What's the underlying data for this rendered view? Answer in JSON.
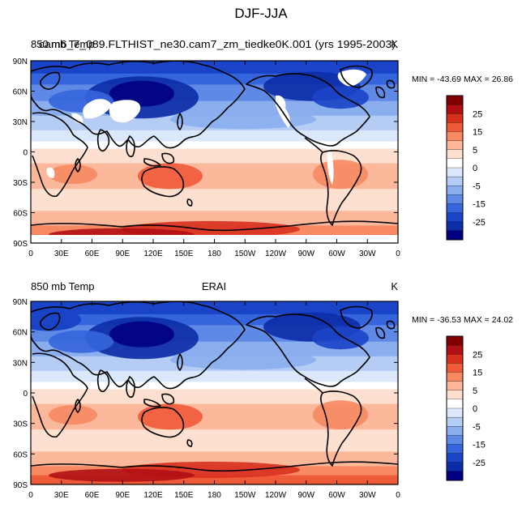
{
  "figure_title": "DJF-JJA",
  "colorbar": {
    "labels": [
      "25",
      "15",
      "5",
      "0",
      "-5",
      "-15",
      "-25"
    ],
    "colors": [
      "#800000",
      "#b00f14",
      "#d8301f",
      "#ef5a39",
      "#f78a63",
      "#fbb89b",
      "#fde0cf",
      "#ffffff",
      "#dbe8fb",
      "#b5cdf5",
      "#8aaeee",
      "#5e8ae6",
      "#3565dc",
      "#1a44c7",
      "#0c2ba6",
      "#000080"
    ]
  },
  "panels": [
    {
      "left_title": "850 mb Temp",
      "center_title": "",
      "model_title": "cam6_7_089.FLTHIST_ne30.cam7_zm_tiedke0K.001 (yrs 1995-2003)",
      "units": "K",
      "stats": {
        "min_label": "MIN = -43.69",
        "max_label": "MAX = 26.86",
        "min": -43.69,
        "max": 26.86
      },
      "masked_highlands": true
    },
    {
      "left_title": "850 mb Temp",
      "center_title": "ERAI",
      "model_title": "",
      "units": "K",
      "stats": {
        "min_label": "MIN = -36.53",
        "max_label": "MAX = 24.02",
        "min": -36.53,
        "max": 24.02
      },
      "masked_highlands": false
    }
  ],
  "axes": {
    "lat_labels": [
      "90N",
      "60N",
      "30N",
      "0",
      "30S",
      "60S",
      "90S"
    ],
    "lon_labels": [
      "0",
      "30E",
      "60E",
      "90E",
      "120E",
      "150E",
      "180",
      "150W",
      "120W",
      "90W",
      "60W",
      "30W",
      "0"
    ]
  },
  "icons": {
    "map_fill": "temperature-contour-fill",
    "coastline": "coastline-outline"
  }
}
